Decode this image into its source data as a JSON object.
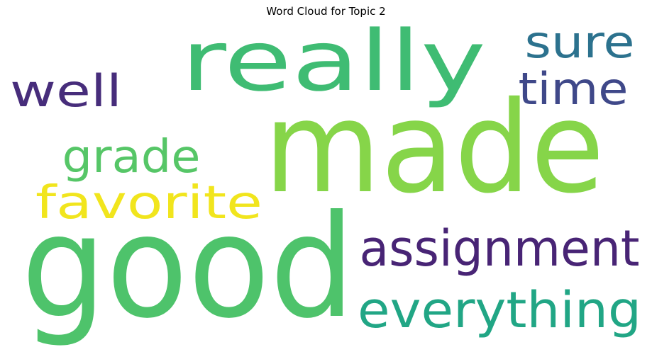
{
  "title": "Word Cloud for Topic 2",
  "words": [
    {
      "text": "made",
      "color": "#86d549"
    },
    {
      "text": "good",
      "color": "#4ec36b"
    },
    {
      "text": "really",
      "color": "#3fbc73"
    },
    {
      "text": "assignment",
      "color": "#482475"
    },
    {
      "text": "everything",
      "color": "#21a685"
    },
    {
      "text": "favorite",
      "color": "#f1e51d"
    },
    {
      "text": "grade",
      "color": "#56c667"
    },
    {
      "text": "sure",
      "color": "#2c728e"
    },
    {
      "text": "time",
      "color": "#3f4889"
    },
    {
      "text": "well",
      "color": "#472d7b"
    }
  ]
}
